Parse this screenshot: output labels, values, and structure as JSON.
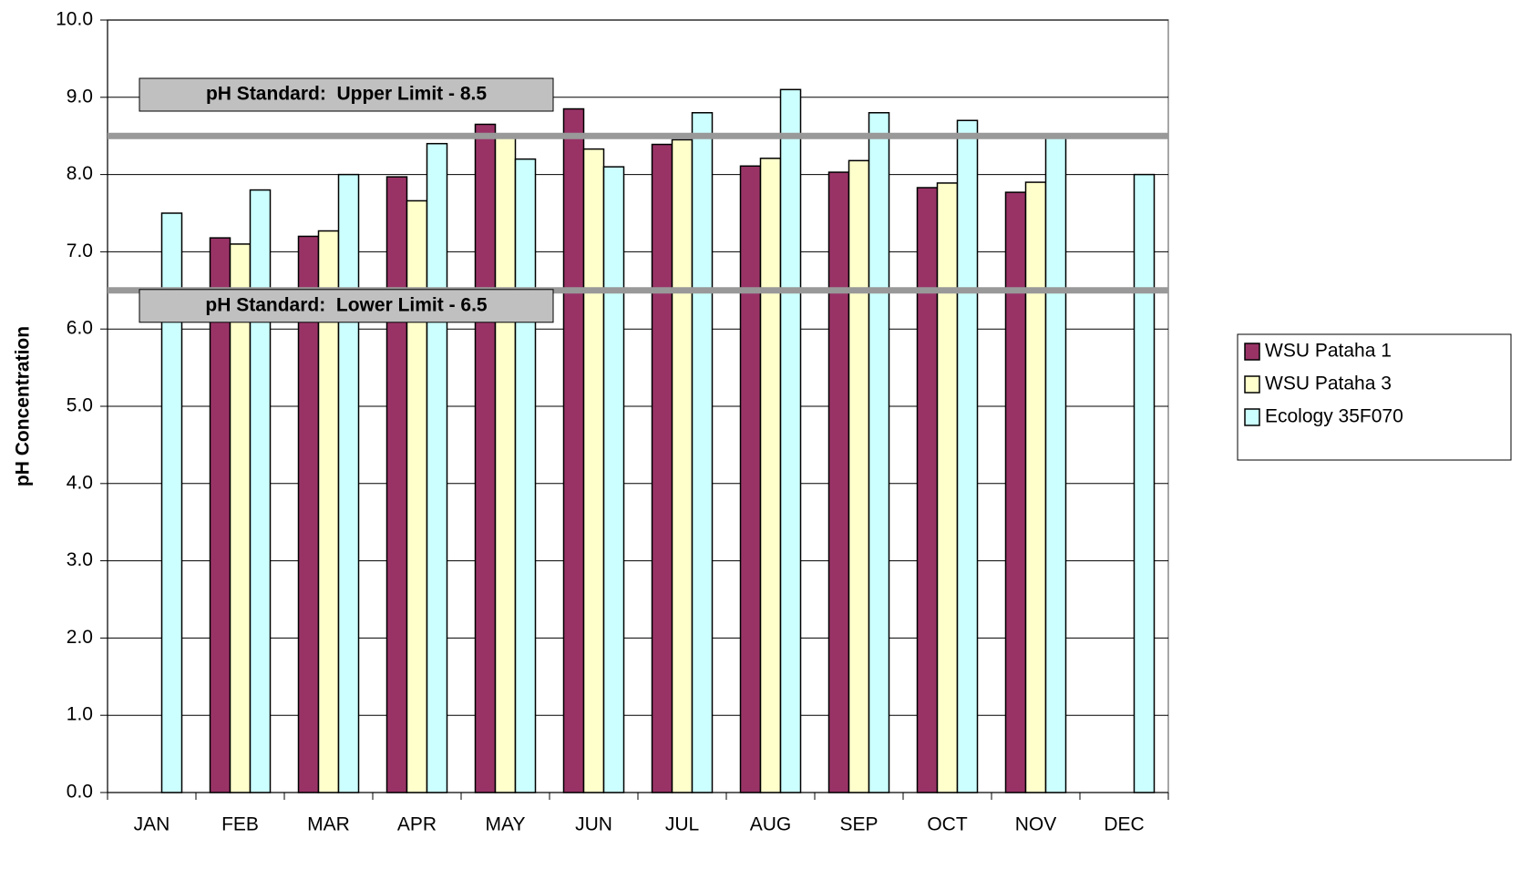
{
  "chart_data": {
    "type": "bar",
    "y_label": "pH Concentration",
    "categories": [
      "JAN",
      "FEB",
      "MAR",
      "APR",
      "MAY",
      "JUN",
      "JUL",
      "AUG",
      "SEP",
      "OCT",
      "NOV",
      "DEC"
    ],
    "series": [
      {
        "name": "WSU Pataha 1",
        "color": "#993366",
        "values": [
          null,
          7.18,
          7.2,
          7.97,
          8.65,
          8.85,
          8.39,
          8.11,
          8.03,
          7.83,
          7.77,
          null
        ]
      },
      {
        "name": "WSU Pataha 3",
        "color": "#ffffcc",
        "values": [
          null,
          7.1,
          7.27,
          7.66,
          8.5,
          8.33,
          8.45,
          8.21,
          8.18,
          7.89,
          7.9,
          null
        ]
      },
      {
        "name": "Ecology 35F070",
        "color": "#ccffff",
        "values": [
          7.5,
          7.8,
          8.0,
          8.4,
          8.2,
          8.1,
          8.8,
          9.1,
          8.8,
          8.7,
          8.5,
          8.0
        ]
      }
    ],
    "reference_lines": [
      {
        "label": "pH Standard:  Upper Limit - 8.5",
        "value": 8.5
      },
      {
        "label": "pH Standard:  Lower Limit - 6.5",
        "value": 6.5
      }
    ],
    "ylim": [
      0,
      10
    ],
    "yticks": [
      {
        "value": 0,
        "label": "0.0"
      },
      {
        "value": 1,
        "label": "1.0"
      },
      {
        "value": 2,
        "label": "2.0"
      },
      {
        "value": 3,
        "label": "3.0"
      },
      {
        "value": 4,
        "label": "4.0"
      },
      {
        "value": 5,
        "label": "5.0"
      },
      {
        "value": 6,
        "label": "6.0"
      },
      {
        "value": 7,
        "label": "7.0"
      },
      {
        "value": 8,
        "label": "8.0"
      },
      {
        "value": 9,
        "label": "9.0"
      },
      {
        "value": 10,
        "label": "10.0"
      }
    ],
    "grid": true,
    "legend": "right"
  }
}
